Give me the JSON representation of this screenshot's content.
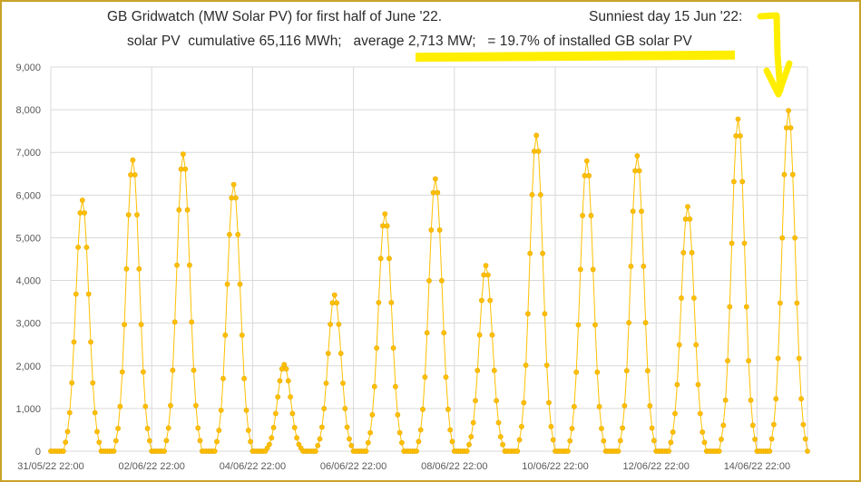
{
  "colors": {
    "series": "#ffc000",
    "grid": "#d9d9d9",
    "frame": "#c9a227",
    "highlight": "#ffee00",
    "text": "#595959"
  },
  "chart_data": {
    "type": "line",
    "title": "GB Gridwatch (MW Solar PV) for first half of June '22.",
    "subtitle": "solar PV  cumulative 65,116 MWh;   average 2,713 MW;   = 19.7% of installed GB solar PV",
    "annotation": "Sunniest day 15 Jun '22:",
    "xlabel": "",
    "ylabel": "",
    "ylim": [
      0,
      9000
    ],
    "y_ticks": [
      "0",
      "1,000",
      "2,000",
      "3,000",
      "4,000",
      "5,000",
      "6,000",
      "7,000",
      "8,000",
      "9,000"
    ],
    "x_tick_labels": [
      "31/05/22 22:00",
      "02/06/22 22:00",
      "04/06/22 22:00",
      "06/06/22 22:00",
      "08/06/22 22:00",
      "10/06/22 22:00",
      "12/06/22 22:00",
      "14/06/22 22:00"
    ],
    "x_range_days": [
      "31/05/22 22:00",
      "15/06/22 22:00"
    ],
    "grid": true,
    "legend": "none",
    "marker": "circle",
    "daily_peaks_mw": [
      {
        "date": "01/06/22",
        "peak": 5880
      },
      {
        "date": "02/06/22",
        "peak": 6820
      },
      {
        "date": "03/06/22",
        "peak": 6960
      },
      {
        "date": "04/06/22",
        "peak": 6250
      },
      {
        "date": "05/06/22",
        "peak": 2030
      },
      {
        "date": "06/06/22",
        "peak": 3660
      },
      {
        "date": "07/06/22",
        "peak": 5560
      },
      {
        "date": "08/06/22",
        "peak": 6380
      },
      {
        "date": "09/06/22",
        "peak": 4350
      },
      {
        "date": "10/06/22",
        "peak": 7400
      },
      {
        "date": "11/06/22",
        "peak": 6800
      },
      {
        "date": "12/06/22",
        "peak": 6920
      },
      {
        "date": "13/06/22",
        "peak": 5730
      },
      {
        "date": "14/06/22",
        "peak": 7780
      },
      {
        "date": "15/06/22",
        "peak": 7980
      }
    ]
  }
}
